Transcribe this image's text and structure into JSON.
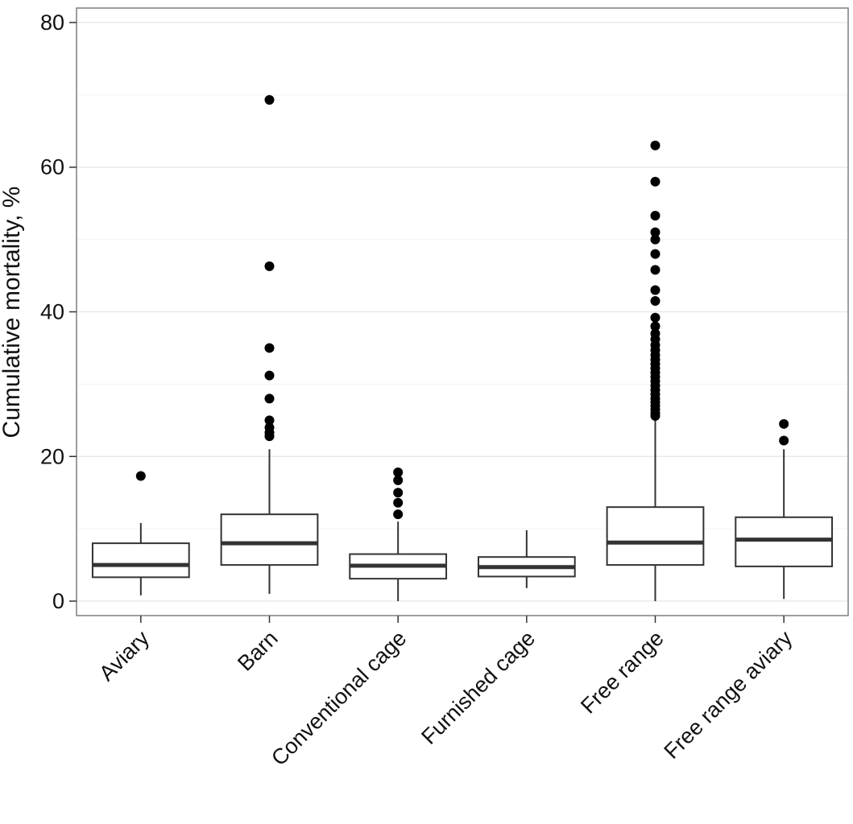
{
  "chart_data": {
    "type": "boxplot",
    "title": "",
    "xlabel": "",
    "ylabel": "Cumulative mortality, %",
    "ylim": [
      -2,
      82
    ],
    "y_ticks": [
      0,
      20,
      40,
      60,
      80
    ],
    "grid": true,
    "categories": [
      "Aviary",
      "Barn",
      "Conventional cage",
      "Furnished cage",
      "Free range",
      "Free range aviary"
    ],
    "boxes": [
      {
        "category": "Aviary",
        "whisker_low": 0.8,
        "q1": 3.3,
        "median": 5.0,
        "q3": 8.0,
        "whisker_high": 10.8,
        "outliers": [
          17.3
        ]
      },
      {
        "category": "Barn",
        "whisker_low": 1.0,
        "q1": 5.0,
        "median": 8.0,
        "q3": 12.0,
        "whisker_high": 21.0,
        "outliers": [
          22.8,
          23.3,
          24.0,
          25.0,
          28.0,
          31.2,
          35.0,
          46.3,
          69.3
        ]
      },
      {
        "category": "Conventional cage",
        "whisker_low": 0.0,
        "q1": 3.1,
        "median": 4.9,
        "q3": 6.5,
        "whisker_high": 11.0,
        "outliers": [
          12.0,
          13.6,
          15.0,
          16.7,
          17.8
        ]
      },
      {
        "category": "Furnished cage",
        "whisker_low": 1.8,
        "q1": 3.4,
        "median": 4.7,
        "q3": 6.1,
        "whisker_high": 9.8,
        "outliers": []
      },
      {
        "category": "Free range",
        "whisker_low": 0.0,
        "q1": 5.0,
        "median": 8.1,
        "q3": 13.0,
        "whisker_high": 25.2,
        "outliers": [
          25.6,
          26.0,
          26.5,
          27.0,
          27.5,
          28.0,
          28.6,
          29.2,
          29.8,
          30.4,
          31.0,
          31.6,
          32.2,
          32.8,
          33.4,
          34.0,
          34.7,
          35.4,
          36.2,
          37.0,
          38.0,
          39.2,
          41.5,
          43.0,
          45.8,
          48.0,
          50.0,
          51.0,
          53.3,
          58.0,
          63.0
        ]
      },
      {
        "category": "Free range aviary",
        "whisker_low": 0.3,
        "q1": 4.8,
        "median": 8.5,
        "q3": 11.6,
        "whisker_high": 21.0,
        "outliers": [
          22.2,
          24.5
        ]
      }
    ]
  }
}
